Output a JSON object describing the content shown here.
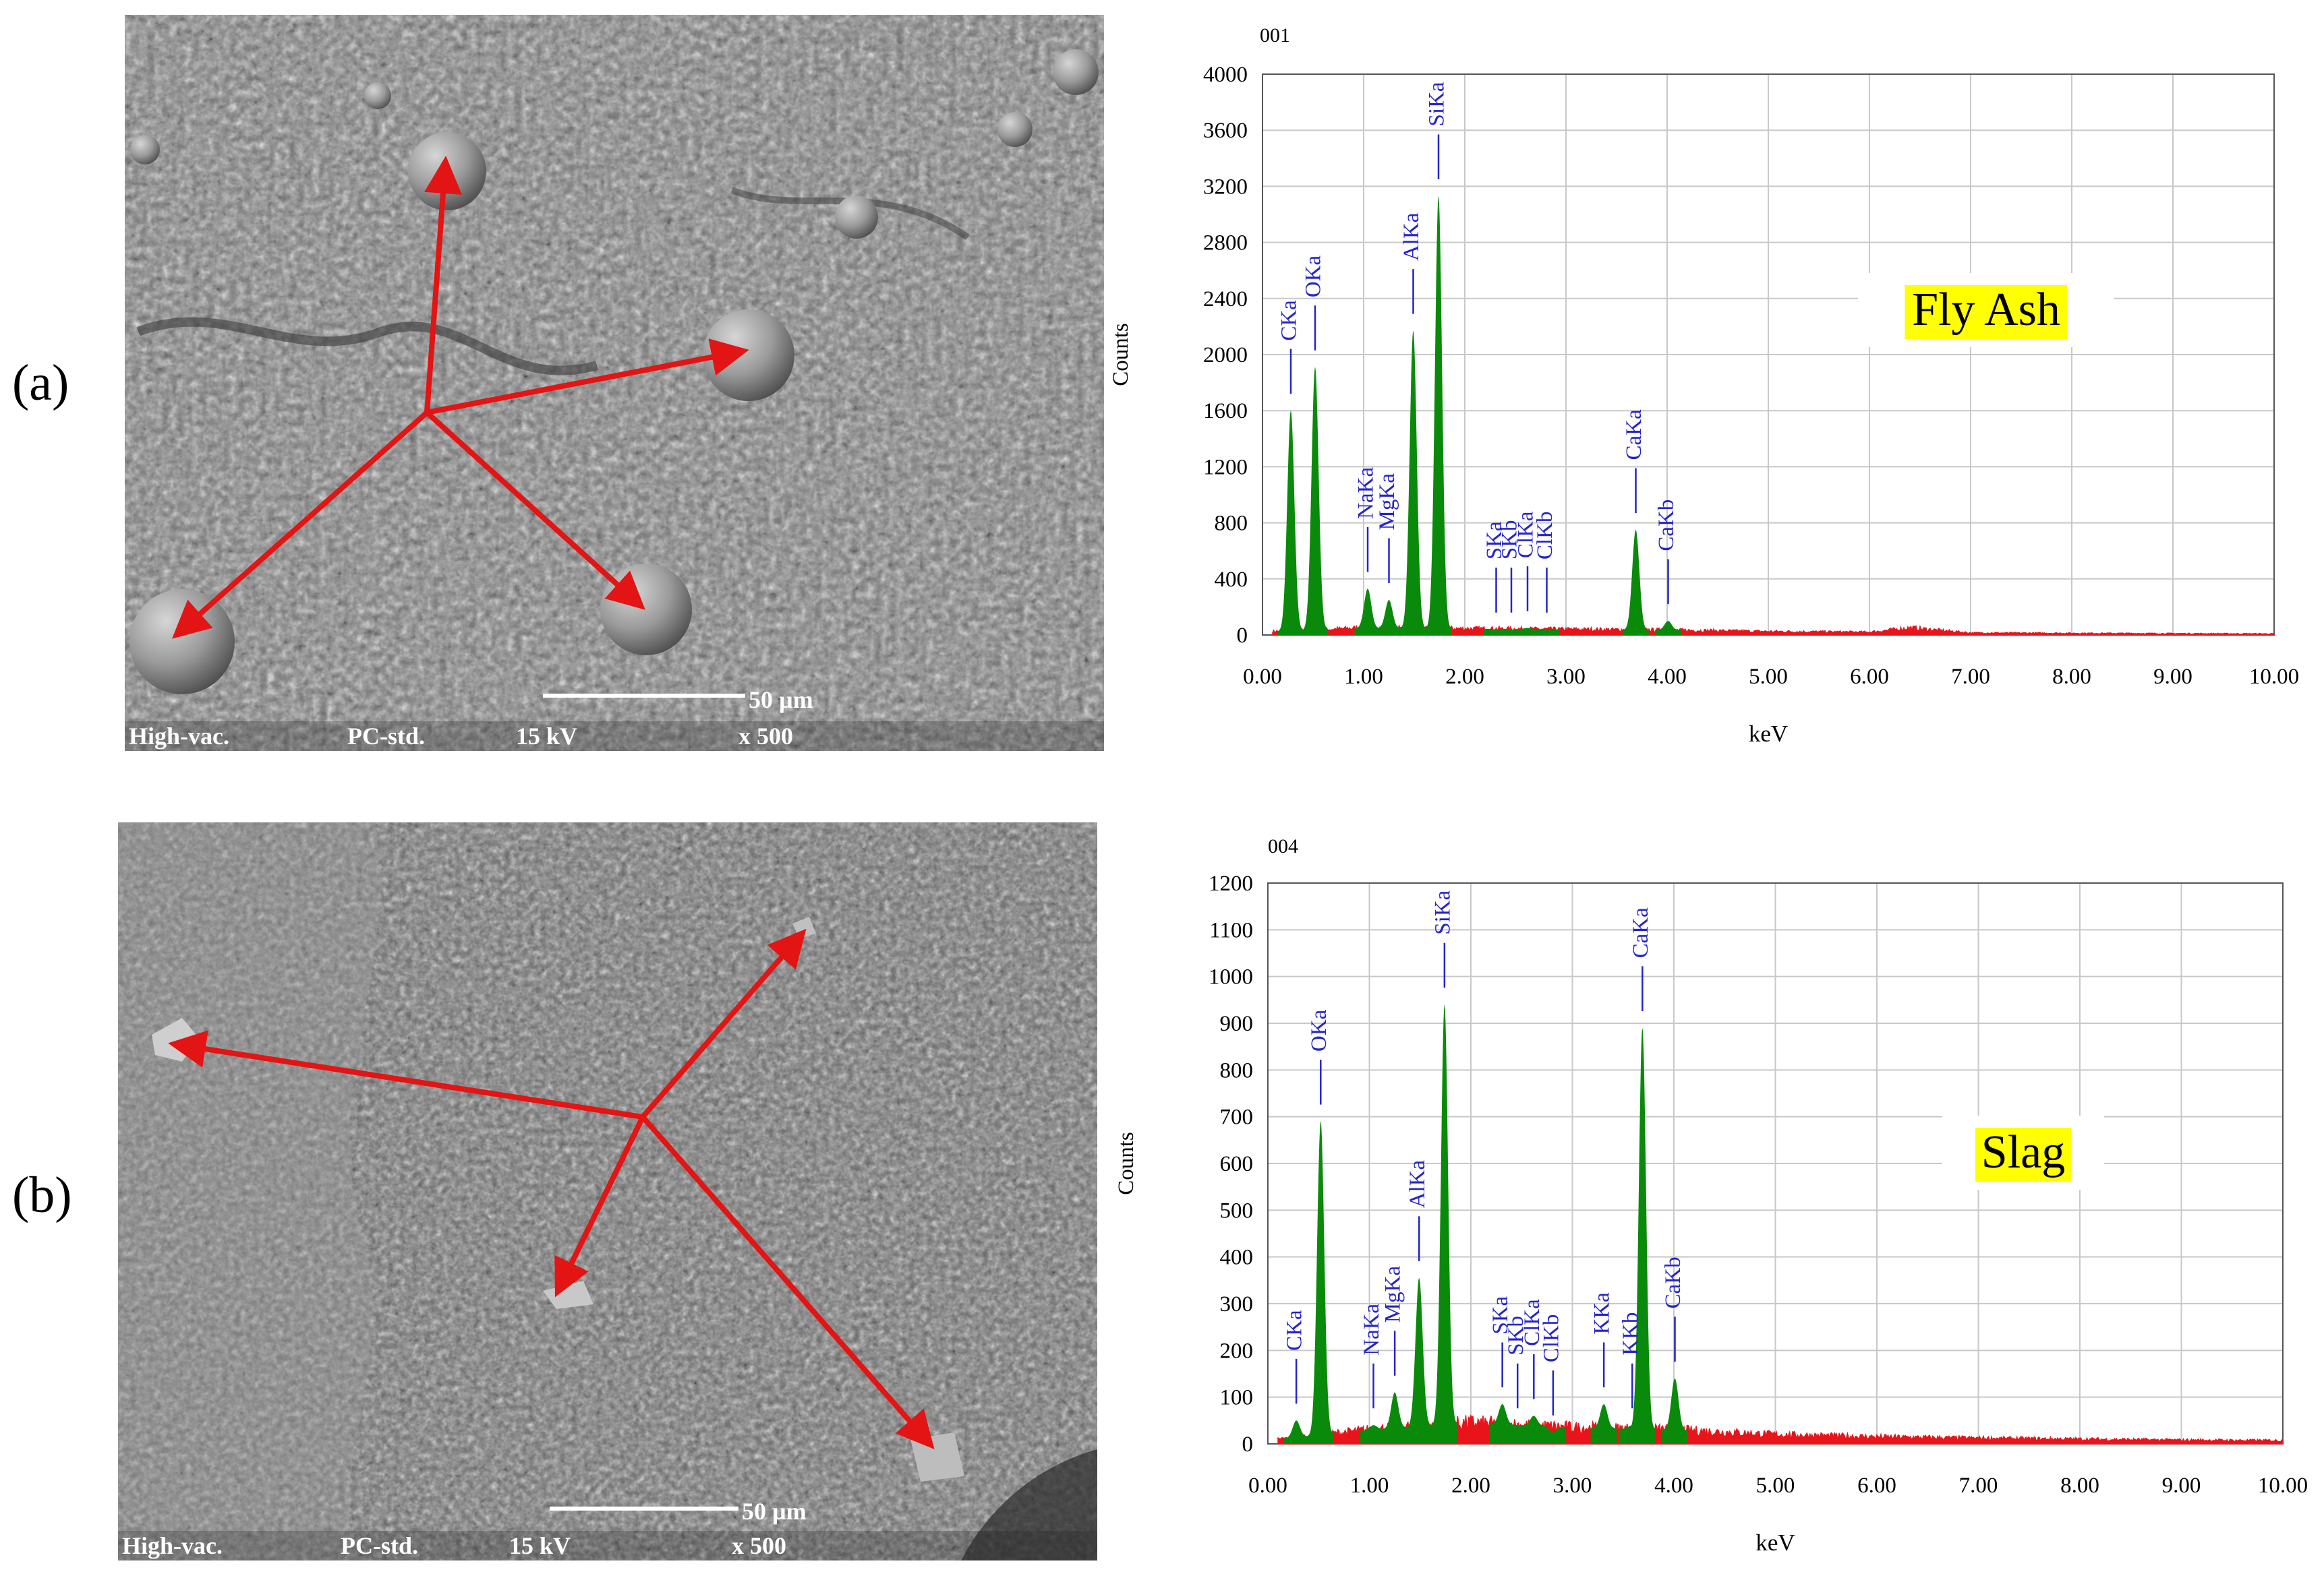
{
  "panels": [
    {
      "label": "(a)",
      "sem": {
        "scalebar": "50 µm",
        "mode": "High-vac.",
        "preset": "PC-std.",
        "voltage": "15 kV",
        "magnification": "x 500"
      }
    },
    {
      "label": "(b)",
      "sem": {
        "scalebar": "50 µm",
        "mode": "High-vac.",
        "preset": "PC-std.",
        "voltage": "15 kV",
        "magnification": "x 500"
      }
    }
  ],
  "colors": {
    "element_peak": "#0a8a0a",
    "background_spectrum": "#e8141a",
    "peak_label": "#2525c8",
    "annotation_highlight": "#ffff00",
    "arrow": "#e31414"
  },
  "chart_data": [
    {
      "type": "area",
      "id": "001",
      "title": "Fly Ash",
      "xlabel": "keV",
      "ylabel": "Counts",
      "xlim": [
        0,
        10
      ],
      "ylim": [
        0,
        4000
      ],
      "x_ticks": [
        "0.00",
        "1.00",
        "2.00",
        "3.00",
        "4.00",
        "5.00",
        "6.00",
        "7.00",
        "8.00",
        "9.00",
        "10.00"
      ],
      "y_ticks": [
        "0",
        "400",
        "800",
        "1200",
        "1600",
        "2000",
        "2400",
        "2800",
        "3200",
        "3600",
        "4000"
      ],
      "grid": true,
      "peaks": [
        {
          "label": "CKa",
          "energy": 0.28,
          "counts": 1600
        },
        {
          "label": "OKa",
          "energy": 0.52,
          "counts": 1910
        },
        {
          "label": "NaKa",
          "energy": 1.04,
          "counts": 330
        },
        {
          "label": "MgKa",
          "energy": 1.25,
          "counts": 250
        },
        {
          "label": "AlKa",
          "energy": 1.49,
          "counts": 2170
        },
        {
          "label": "SiKa",
          "energy": 1.74,
          "counts": 3130
        },
        {
          "label": "SKa",
          "energy": 2.31,
          "counts": 40
        },
        {
          "label": "SKb",
          "energy": 2.46,
          "counts": 40
        },
        {
          "label": "ClKa",
          "energy": 2.62,
          "counts": 50
        },
        {
          "label": "ClKb",
          "energy": 2.81,
          "counts": 40
        },
        {
          "label": "CaKa",
          "energy": 3.69,
          "counts": 750
        },
        {
          "label": "CaKb",
          "energy": 4.01,
          "counts": 100
        }
      ],
      "background": [
        [
          0.1,
          25
        ],
        [
          1.0,
          50
        ],
        [
          2.0,
          45
        ],
        [
          3.0,
          40
        ],
        [
          4.0,
          35
        ],
        [
          5.0,
          25
        ],
        [
          6.0,
          20
        ],
        [
          6.4,
          50
        ],
        [
          7.0,
          15
        ],
        [
          8.0,
          12
        ],
        [
          9.0,
          10
        ],
        [
          10.0,
          8
        ]
      ]
    },
    {
      "type": "area",
      "id": "004",
      "title": "Slag",
      "xlabel": "keV",
      "ylabel": "Counts",
      "xlim": [
        0,
        10
      ],
      "ylim": [
        0,
        1200
      ],
      "x_ticks": [
        "0.00",
        "1.00",
        "2.00",
        "3.00",
        "4.00",
        "5.00",
        "6.00",
        "7.00",
        "8.00",
        "9.00",
        "10.00"
      ],
      "y_ticks": [
        "0",
        "100",
        "200",
        "300",
        "400",
        "500",
        "600",
        "700",
        "800",
        "900",
        "1000",
        "1100",
        "1200"
      ],
      "grid": true,
      "peaks": [
        {
          "label": "CKa",
          "energy": 0.28,
          "counts": 50
        },
        {
          "label": "OKa",
          "energy": 0.52,
          "counts": 690
        },
        {
          "label": "NaKa",
          "energy": 1.04,
          "counts": 40
        },
        {
          "label": "MgKa",
          "energy": 1.25,
          "counts": 110
        },
        {
          "label": "AlKa",
          "energy": 1.49,
          "counts": 355
        },
        {
          "label": "SiKa",
          "energy": 1.74,
          "counts": 940
        },
        {
          "label": "SKa",
          "energy": 2.31,
          "counts": 85
        },
        {
          "label": "SKb",
          "energy": 2.46,
          "counts": 40
        },
        {
          "label": "ClKa",
          "energy": 2.62,
          "counts": 60
        },
        {
          "label": "ClKb",
          "energy": 2.81,
          "counts": 25
        },
        {
          "label": "KKa",
          "energy": 3.31,
          "counts": 85
        },
        {
          "label": "KKb",
          "energy": 3.59,
          "counts": 40
        },
        {
          "label": "CaKa",
          "energy": 3.69,
          "counts": 890
        },
        {
          "label": "CaKb",
          "energy": 4.01,
          "counts": 140
        }
      ],
      "background": [
        [
          0.1,
          10
        ],
        [
          1.0,
          30
        ],
        [
          2.0,
          45
        ],
        [
          3.0,
          35
        ],
        [
          4.0,
          30
        ],
        [
          5.0,
          20
        ],
        [
          6.0,
          15
        ],
        [
          7.0,
          12
        ],
        [
          8.0,
          10
        ],
        [
          9.0,
          8
        ],
        [
          10.0,
          7
        ]
      ]
    }
  ]
}
